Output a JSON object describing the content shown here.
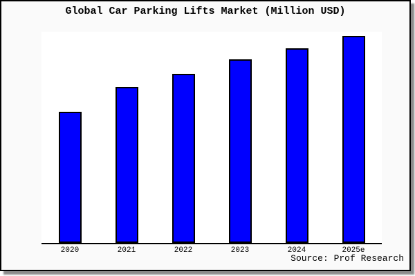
{
  "frame": {
    "background_color": "#fafafa",
    "border_color": "#000000",
    "shadow_color": "#6e6e6e"
  },
  "chart_data": {
    "type": "bar",
    "title": "Global Car Parking Lifts Market (Million USD)",
    "categories": [
      "2020",
      "2021",
      "2022",
      "2023",
      "2024",
      "2025e"
    ],
    "values": [
      62,
      74,
      80,
      87,
      92,
      98
    ],
    "value_units": "relative-height (no y-axis scale shown in image)",
    "xlabel": "",
    "ylabel": "",
    "ylim": [
      0,
      100
    ],
    "y_axis_labels": "none",
    "grid": "off",
    "legend": "none",
    "plot_background": "#ffffff",
    "axis_line_color": "#000000",
    "bar_color": "#0000ff",
    "bar_border_color": "#000000"
  },
  "source": {
    "label": "Source: Prof Research"
  }
}
